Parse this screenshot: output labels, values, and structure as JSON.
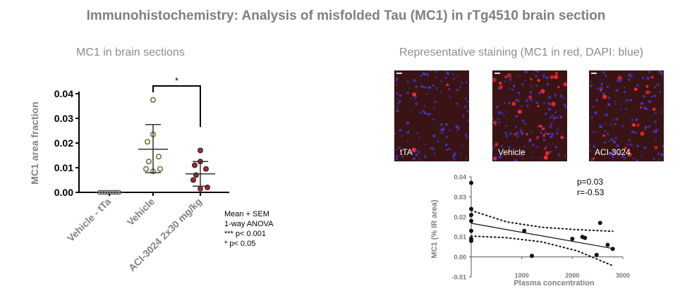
{
  "title": "Immunohistochemistry: Analysis of misfolded Tau (MC1) in rTg4510 brain section",
  "left_subtitle": "MC1 in brain sections",
  "right_subtitle": "Representative staining (MC1 in red, DAPI: blue)",
  "legend_lines": [
    "Mean + SEM",
    "1-way ANOVA",
    "*** p< 0.001",
    "* p< 0.05"
  ],
  "panels": [
    {
      "label": "tTA",
      "red_density": 0.02
    },
    {
      "label": "Vehicle",
      "red_density": 0.22
    },
    {
      "label": "ACI-3024",
      "red_density": 0.12
    }
  ],
  "colors": {
    "vehicle_fill": "#ffffff",
    "treated_fill": "#cc1a1a",
    "tta_fill": "#ffffff",
    "panel_bg": "#3a1414"
  },
  "chart_data": [
    {
      "type": "scatter",
      "title": "",
      "ylabel": "MC1 area fraction",
      "ylim": [
        0,
        0.04
      ],
      "yticks": [
        0.0,
        0.01,
        0.02,
        0.03,
        0.04
      ],
      "ytick_labels": [
        "0.00",
        "0.01",
        "0.02",
        "0.03",
        "0.04"
      ],
      "categories": [
        "Vehicle - tTa",
        "Vehicle",
        "ACI-3024 2x30 mg/kg"
      ],
      "groups": [
        {
          "name": "Vehicle - tTa",
          "values": [
            0,
            0,
            0,
            0,
            0,
            0,
            0,
            0
          ],
          "mean": 0.0,
          "err_low": 0.0,
          "err_high": 0.0,
          "fill": "#ffffff",
          "edge": "#333333"
        },
        {
          "name": "Vehicle",
          "values": [
            0.0375,
            0.0235,
            0.0205,
            0.0145,
            0.0125,
            0.0095,
            0.0095,
            0.0085
          ],
          "mean": 0.0175,
          "err_low": 0.008,
          "err_high": 0.0275,
          "fill": "#ffffff",
          "edge": "#6b6b2e"
        },
        {
          "name": "ACI-3024 2x30 mg/kg",
          "values": [
            0.017,
            0.0125,
            0.011,
            0.0095,
            0.007,
            0.005,
            0.002,
            0.0015
          ],
          "mean": 0.0075,
          "err_low": 0.0025,
          "err_high": 0.0125,
          "fill": "#cc1a1a",
          "edge": "#333333"
        }
      ],
      "significance": {
        "between": [
          "Vehicle",
          "ACI-3024 2x30 mg/kg"
        ],
        "label": "*"
      }
    },
    {
      "type": "scatter",
      "xlabel": "Plasma concentration",
      "ylabel": "MC1 (% IR area)",
      "xlim": [
        0,
        3000
      ],
      "ylim": [
        -0.01,
        0.04
      ],
      "xticks": [
        1000,
        2000,
        3000
      ],
      "xtick_labels": [
        "1000",
        "2000",
        "3000"
      ],
      "yticks": [
        -0.01,
        0.0,
        0.01,
        0.02,
        0.03,
        0.04
      ],
      "ytick_labels": [
        "-0.01",
        "0.00",
        "0.01",
        "0.02",
        "0.03",
        "0.04"
      ],
      "points": [
        {
          "x": 0,
          "y": 0.037
        },
        {
          "x": 0,
          "y": 0.024
        },
        {
          "x": 0,
          "y": 0.021
        },
        {
          "x": 0,
          "y": 0.018
        },
        {
          "x": 0,
          "y": 0.013
        },
        {
          "x": 0,
          "y": 0.009
        },
        {
          "x": 0,
          "y": 0.008
        },
        {
          "x": 1050,
          "y": 0.013
        },
        {
          "x": 1200,
          "y": 0.0005
        },
        {
          "x": 2000,
          "y": 0.009
        },
        {
          "x": 2200,
          "y": 0.01
        },
        {
          "x": 2250,
          "y": 0.0095
        },
        {
          "x": 2480,
          "y": 0.001
        },
        {
          "x": 2550,
          "y": 0.017
        },
        {
          "x": 2700,
          "y": 0.006
        },
        {
          "x": 2800,
          "y": 0.004
        }
      ],
      "regression": {
        "x": [
          0,
          2800
        ],
        "y": [
          0.0168,
          0.0042
        ]
      },
      "ci_upper": [
        [
          0,
          0.0232
        ],
        [
          700,
          0.0175
        ],
        [
          1400,
          0.0148
        ],
        [
          2100,
          0.0136
        ],
        [
          2800,
          0.0128
        ]
      ],
      "ci_lower": [
        [
          0,
          0.0104
        ],
        [
          700,
          0.0096
        ],
        [
          1400,
          0.0075
        ],
        [
          2100,
          0.003
        ],
        [
          2800,
          -0.0044
        ]
      ],
      "annotations": [
        "p=0.03",
        "r=-0.53"
      ]
    }
  ]
}
